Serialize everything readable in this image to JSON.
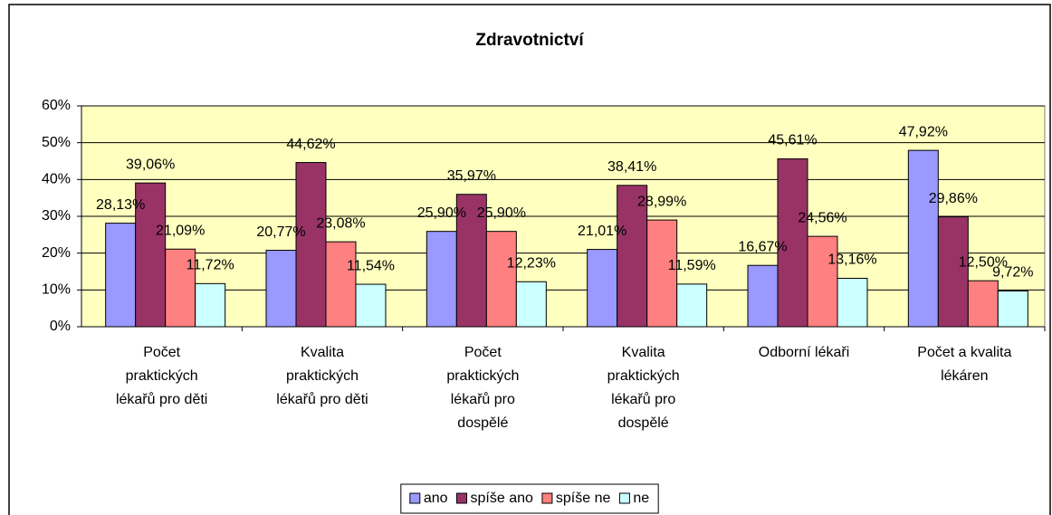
{
  "chart_data": {
    "type": "bar",
    "title": "Zdravotnictví",
    "categories": [
      "Počet praktických lékařů pro děti",
      "Kvalita praktických lékařů pro děti",
      "Počet praktických lékařů pro dospělé",
      "Kvalita praktických lékařů pro dospělé",
      "Odborní lékaři",
      "Počet a kvalita lékáren"
    ],
    "series": [
      {
        "name": "ano",
        "color": "#9999ff",
        "values": [
          28.13,
          20.77,
          25.9,
          21.01,
          16.67,
          47.92
        ],
        "value_labels": [
          "28,13%",
          "20,77%",
          "25,90%",
          "21,01%",
          "16,67%",
          "47,92%"
        ]
      },
      {
        "name": "spíše ano",
        "color": "#993366",
        "values": [
          39.06,
          44.62,
          35.97,
          38.41,
          45.61,
          29.86
        ],
        "value_labels": [
          "39,06%",
          "44,62%",
          "35,97%",
          "38,41%",
          "45,61%",
          "29,86%"
        ]
      },
      {
        "name": "spíše ne",
        "color": "#ff8080",
        "values": [
          21.09,
          23.08,
          25.9,
          28.99,
          24.56,
          12.5
        ],
        "value_labels": [
          "21,09%",
          "23,08%",
          "25,90%",
          "28,99%",
          "24,56%",
          "12,50%"
        ]
      },
      {
        "name": "ne",
        "color": "#ccffff",
        "values": [
          11.72,
          11.54,
          12.23,
          11.59,
          13.16,
          9.72
        ],
        "value_labels": [
          "11,72%",
          "11,54%",
          "12,23%",
          "11,59%",
          "13,16%",
          "9,72%"
        ]
      }
    ],
    "ylim": [
      0,
      60
    ],
    "yticks": [
      {
        "value": 0,
        "label": "0%"
      },
      {
        "value": 10,
        "label": "10%"
      },
      {
        "value": 20,
        "label": "20%"
      },
      {
        "value": 30,
        "label": "30%"
      },
      {
        "value": 40,
        "label": "40%"
      },
      {
        "value": 50,
        "label": "50%"
      },
      {
        "value": 60,
        "label": "60%"
      }
    ],
    "grid": true,
    "legend": "bottom",
    "plot_background": "#ffffc0"
  }
}
